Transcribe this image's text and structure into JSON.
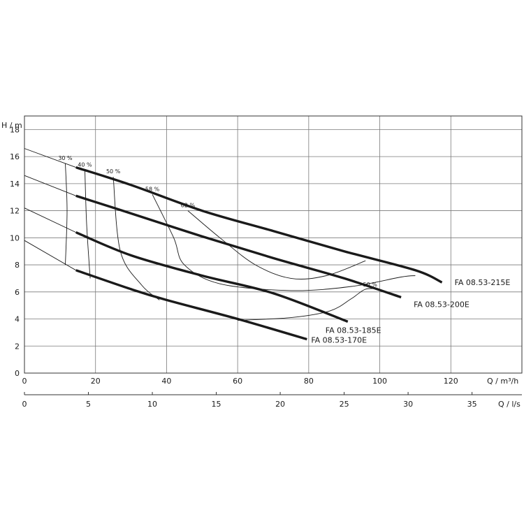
{
  "chart_data": {
    "type": "line",
    "y_axis": {
      "label": "H / m",
      "range": [
        0,
        19
      ],
      "ticks": [
        "0",
        "2",
        "4",
        "6",
        "8",
        "10",
        "12",
        "14",
        "16",
        "18"
      ],
      "grid": true
    },
    "x_axis": {
      "label": "Q / m³/h",
      "range": [
        0,
        140
      ],
      "ticks": [
        "0",
        "20",
        "40",
        "60",
        "80",
        "100",
        "120"
      ],
      "grid": true
    },
    "x_axis_secondary": {
      "label": "Q / l/s",
      "range": [
        0,
        38.9
      ],
      "ticks": [
        "0",
        "5",
        "10",
        "15",
        "20",
        "25",
        "30",
        "35"
      ]
    },
    "series": [
      {
        "name": "FA 08.53-215E",
        "dashed_segment": [
          [
            0,
            16.6
          ],
          [
            14.5,
            15.2
          ]
        ],
        "points": [
          [
            14.5,
            15.2
          ],
          [
            30,
            13.9
          ],
          [
            50,
            12.0
          ],
          [
            70,
            10.5
          ],
          [
            90,
            9.0
          ],
          [
            110,
            7.6
          ],
          [
            117.5,
            6.7
          ]
        ]
      },
      {
        "name": "FA 08.53-200E",
        "dashed_segment": [
          [
            0,
            14.6
          ],
          [
            14.5,
            13.1
          ]
        ],
        "points": [
          [
            14.5,
            13.1
          ],
          [
            30,
            11.8
          ],
          [
            50,
            10.1
          ],
          [
            70,
            8.5
          ],
          [
            90,
            7.0
          ],
          [
            106,
            5.6
          ]
        ]
      },
      {
        "name": "FA 08.53-185E",
        "dashed_segment": [
          [
            0,
            12.2
          ],
          [
            14.5,
            10.4
          ]
        ],
        "points": [
          [
            14.5,
            10.4
          ],
          [
            30,
            8.7
          ],
          [
            50,
            7.2
          ],
          [
            70,
            5.9
          ],
          [
            91,
            3.8
          ]
        ]
      },
      {
        "name": "FA 08.53-170E",
        "dashed_segment": [
          [
            0,
            9.8
          ],
          [
            14.5,
            7.6
          ]
        ],
        "points": [
          [
            14.5,
            7.6
          ],
          [
            30,
            6.2
          ],
          [
            40,
            5.4
          ],
          [
            60,
            4.0
          ],
          [
            79.5,
            2.5
          ]
        ]
      }
    ],
    "efficiency_contours": [
      {
        "label": "30 %",
        "points": [
          [
            11.5,
            15.5
          ],
          [
            12.0,
            12.0
          ],
          [
            11.5,
            8.0
          ]
        ]
      },
      {
        "label": "40 %",
        "points": [
          [
            17.0,
            15.0
          ],
          [
            17.5,
            11.0
          ],
          [
            18.5,
            7.0
          ]
        ]
      },
      {
        "label": "50 %",
        "points": [
          [
            25.0,
            14.5
          ],
          [
            27.0,
            9.0
          ],
          [
            33.0,
            6.5
          ],
          [
            38.0,
            5.4
          ]
        ]
      },
      {
        "label": "58 %",
        "points": [
          [
            36.0,
            13.2
          ],
          [
            42.0,
            10.0
          ],
          [
            45.0,
            8.0
          ],
          [
            55.0,
            6.6
          ],
          [
            75.0,
            6.1
          ],
          [
            92.0,
            6.4
          ],
          [
            106.0,
            7.1
          ],
          [
            110.0,
            7.2
          ]
        ]
      },
      {
        "label": "62 %",
        "points": [
          [
            46.0,
            12.0
          ],
          [
            55.0,
            10.0
          ],
          [
            65.0,
            8.0
          ],
          [
            75.0,
            7.0
          ],
          [
            85.0,
            7.2
          ],
          [
            96.0,
            8.3
          ]
        ]
      },
      {
        "label": "50 %",
        "points": [
          [
            60.0,
            3.9
          ],
          [
            75.0,
            4.1
          ],
          [
            86.0,
            4.6
          ],
          [
            92.0,
            5.5
          ],
          [
            96.0,
            6.2
          ],
          [
            100.0,
            6.2
          ]
        ]
      }
    ],
    "series_label_positions": [
      "right-of-end",
      "right-of-end",
      "below-end",
      "left-of-end"
    ],
    "legend": "labels at curve ends"
  }
}
